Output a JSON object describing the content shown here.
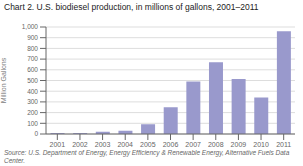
{
  "chart_data": {
    "type": "bar",
    "title": "Chart 2. U.S. biodiesel production, in millions of gallons, 2001–2011",
    "categories": [
      "2001",
      "2002",
      "2003",
      "2004",
      "2005",
      "2006",
      "2007",
      "2008",
      "2009",
      "2010",
      "2011"
    ],
    "values": [
      10,
      10,
      20,
      30,
      90,
      250,
      490,
      670,
      515,
      340,
      960
    ],
    "color": "#9999cc",
    "ylabel": "Million Gallons",
    "ylim": [
      0,
      1000
    ],
    "yticks": [
      0,
      100,
      200,
      300,
      400,
      500,
      600,
      700,
      800,
      900,
      {
        "value": 1000,
        "label": "1,000"
      }
    ],
    "grid": true,
    "annotations": [
      "Source: U.S. Department of Energy,  Energy Efficiency & Renewable Energy, Alternative Fuels Data Center."
    ]
  }
}
